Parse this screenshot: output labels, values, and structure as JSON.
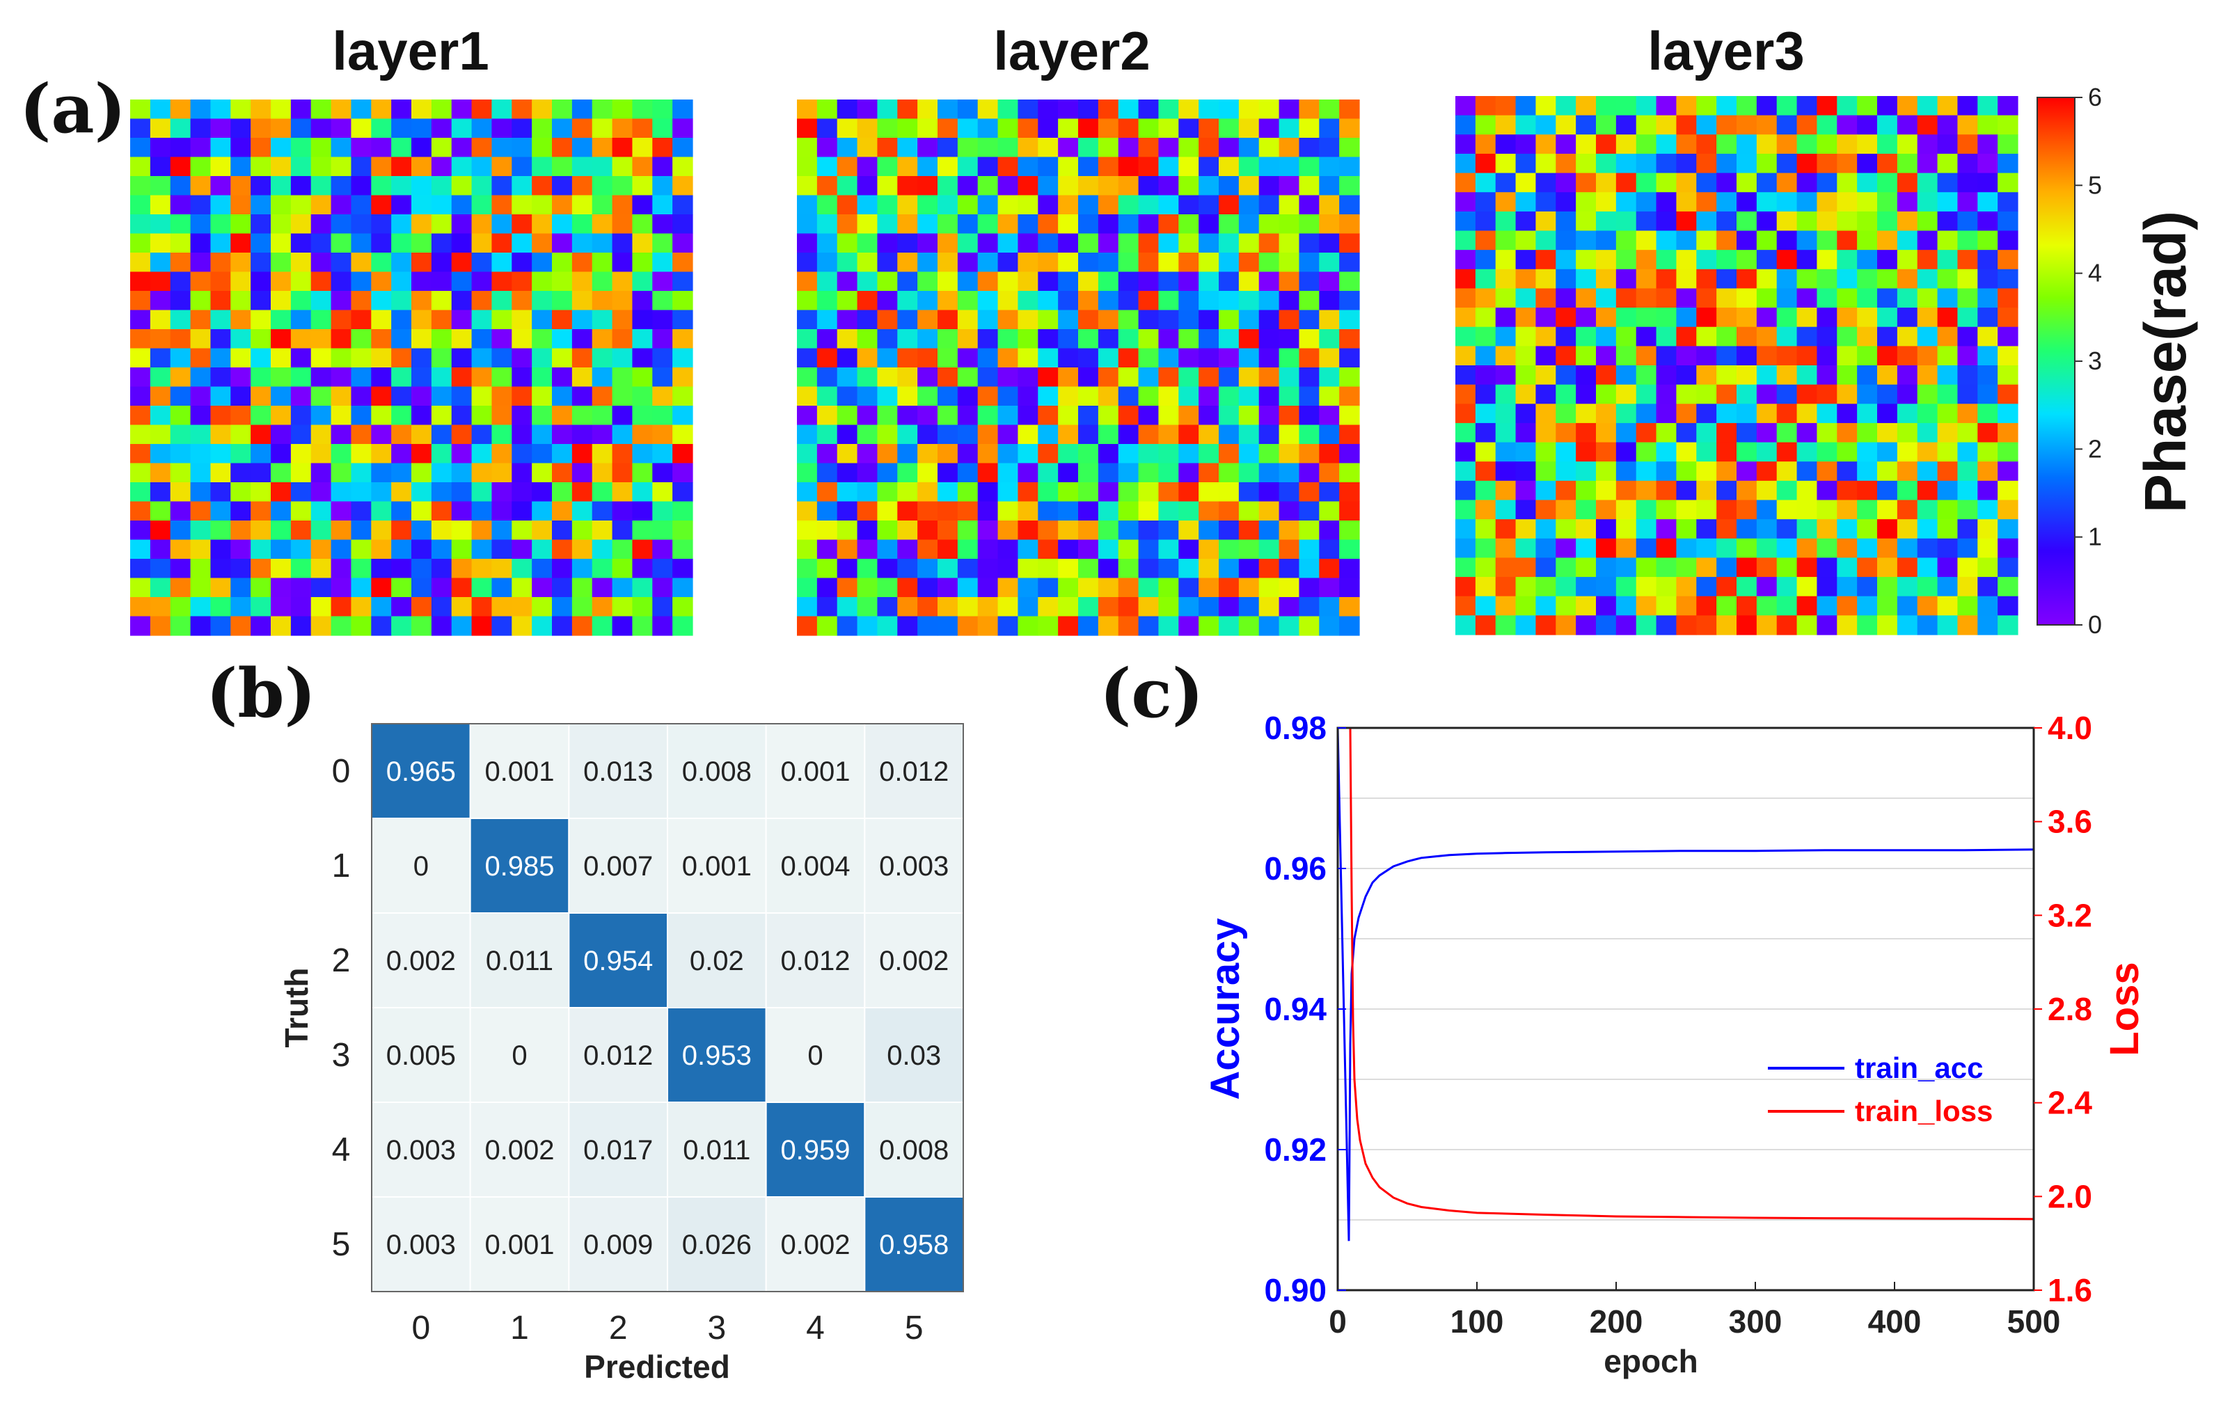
{
  "panels": {
    "a": "(a)",
    "b": "(b)",
    "c": "(c)"
  },
  "chart_data": [
    {
      "id": "phase-maps",
      "type": "heatmap",
      "titles": [
        "layer1",
        "layer2",
        "layer3"
      ],
      "grid_size": 28,
      "value_range": [
        0,
        6
      ],
      "colormap": "jet",
      "colorbar_ticks": [
        "0",
        "1",
        "2",
        "3",
        "4",
        "5",
        "6"
      ],
      "colorbar_label": "Phase(rad)",
      "seeds": [
        11,
        23,
        37
      ]
    },
    {
      "id": "confusion-matrix",
      "type": "heatmap",
      "xlabel": "Predicted",
      "ylabel": "Truth",
      "x_ticks": [
        "0",
        "1",
        "2",
        "3",
        "4",
        "5"
      ],
      "y_ticks": [
        "0",
        "1",
        "2",
        "3",
        "4",
        "5"
      ],
      "labels": [
        [
          "0.965",
          "0.001",
          "0.013",
          "0.008",
          "0.001",
          "0.012"
        ],
        [
          "0",
          "0.985",
          "0.007",
          "0.001",
          "0.004",
          "0.003"
        ],
        [
          "0.002",
          "0.011",
          "0.954",
          "0.02",
          "0.012",
          "0.002"
        ],
        [
          "0.005",
          "0",
          "0.012",
          "0.953",
          "0",
          "0.03"
        ],
        [
          "0.003",
          "0.002",
          "0.017",
          "0.011",
          "0.959",
          "0.008"
        ],
        [
          "0.003",
          "0.001",
          "0.009",
          "0.026",
          "0.002",
          "0.958"
        ]
      ],
      "colors": {
        "high": "#1f6fb4",
        "low": "#eef5f5",
        "high_text": "#ffffff",
        "low_text": "#222222"
      }
    },
    {
      "id": "learning-curves",
      "type": "line",
      "xlabel": "epoch",
      "ylabel_left": "Accuracy",
      "ylabel_right": "Loss",
      "xlim": [
        0,
        500
      ],
      "ylim_left": [
        0.9,
        0.98
      ],
      "ylim_right": [
        1.6,
        4.0
      ],
      "x_ticks": [
        "0",
        "100",
        "200",
        "300",
        "400",
        "500"
      ],
      "y_ticks_left": [
        "0.90",
        "0.92",
        "0.94",
        "0.96",
        "0.98"
      ],
      "y_ticks_right": [
        "1.6",
        "2.0",
        "2.4",
        "2.8",
        "3.2",
        "3.6",
        "4.0"
      ],
      "series": [
        {
          "name": "train_acc",
          "axis": "left",
          "color": "#0000ff",
          "x": [
            0,
            8,
            9,
            10,
            12,
            15,
            20,
            25,
            30,
            40,
            50,
            60,
            70,
            80,
            100,
            120,
            150,
            200,
            250,
            300,
            350,
            400,
            450,
            500
          ],
          "values": [
            0.98,
            0.907,
            0.935,
            0.945,
            0.95,
            0.953,
            0.956,
            0.958,
            0.959,
            0.9603,
            0.961,
            0.9615,
            0.9617,
            0.9619,
            0.9621,
            0.9622,
            0.9623,
            0.9624,
            0.9625,
            0.9625,
            0.9626,
            0.9626,
            0.9626,
            0.9627
          ]
        },
        {
          "name": "train_loss",
          "axis": "right",
          "color": "#ff0000",
          "x": [
            9,
            10,
            11,
            12,
            14,
            16,
            20,
            25,
            30,
            40,
            50,
            60,
            80,
            100,
            150,
            200,
            250,
            300,
            350,
            400,
            450,
            500
          ],
          "values": [
            4.0,
            3.3,
            2.75,
            2.5,
            2.33,
            2.24,
            2.14,
            2.08,
            2.04,
            1.995,
            1.97,
            1.955,
            1.94,
            1.93,
            1.922,
            1.915,
            1.912,
            1.909,
            1.907,
            1.906,
            1.905,
            1.904
          ]
        }
      ]
    }
  ]
}
